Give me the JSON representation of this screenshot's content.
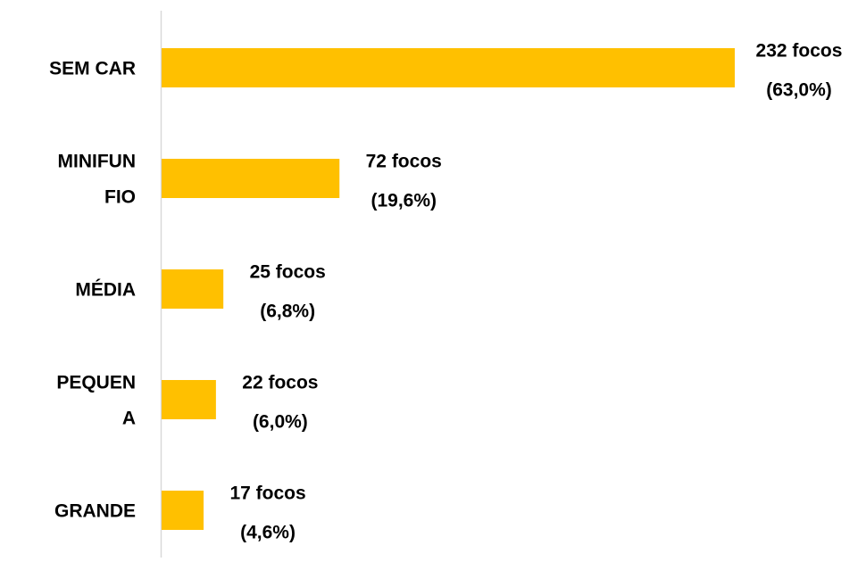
{
  "chart_data": {
    "type": "bar",
    "orientation": "horizontal",
    "categories": [
      [
        "SEM  CAR"
      ],
      [
        "MINIFUN",
        "FIO"
      ],
      [
        "MÉDIA"
      ],
      [
        "PEQUEN",
        "A"
      ],
      [
        "GRANDE"
      ]
    ],
    "values": [
      232,
      72,
      25,
      22,
      17
    ],
    "value_labels": [
      [
        "232 focos",
        "(63,0%)"
      ],
      [
        "72 focos",
        "(19,6%)"
      ],
      [
        "25 focos",
        "(6,8%)"
      ],
      [
        "22 focos",
        "(6,0%)"
      ],
      [
        "17 focos",
        "(4,6%)"
      ]
    ],
    "color": "#ffc000",
    "xlim": [
      0,
      232
    ]
  }
}
